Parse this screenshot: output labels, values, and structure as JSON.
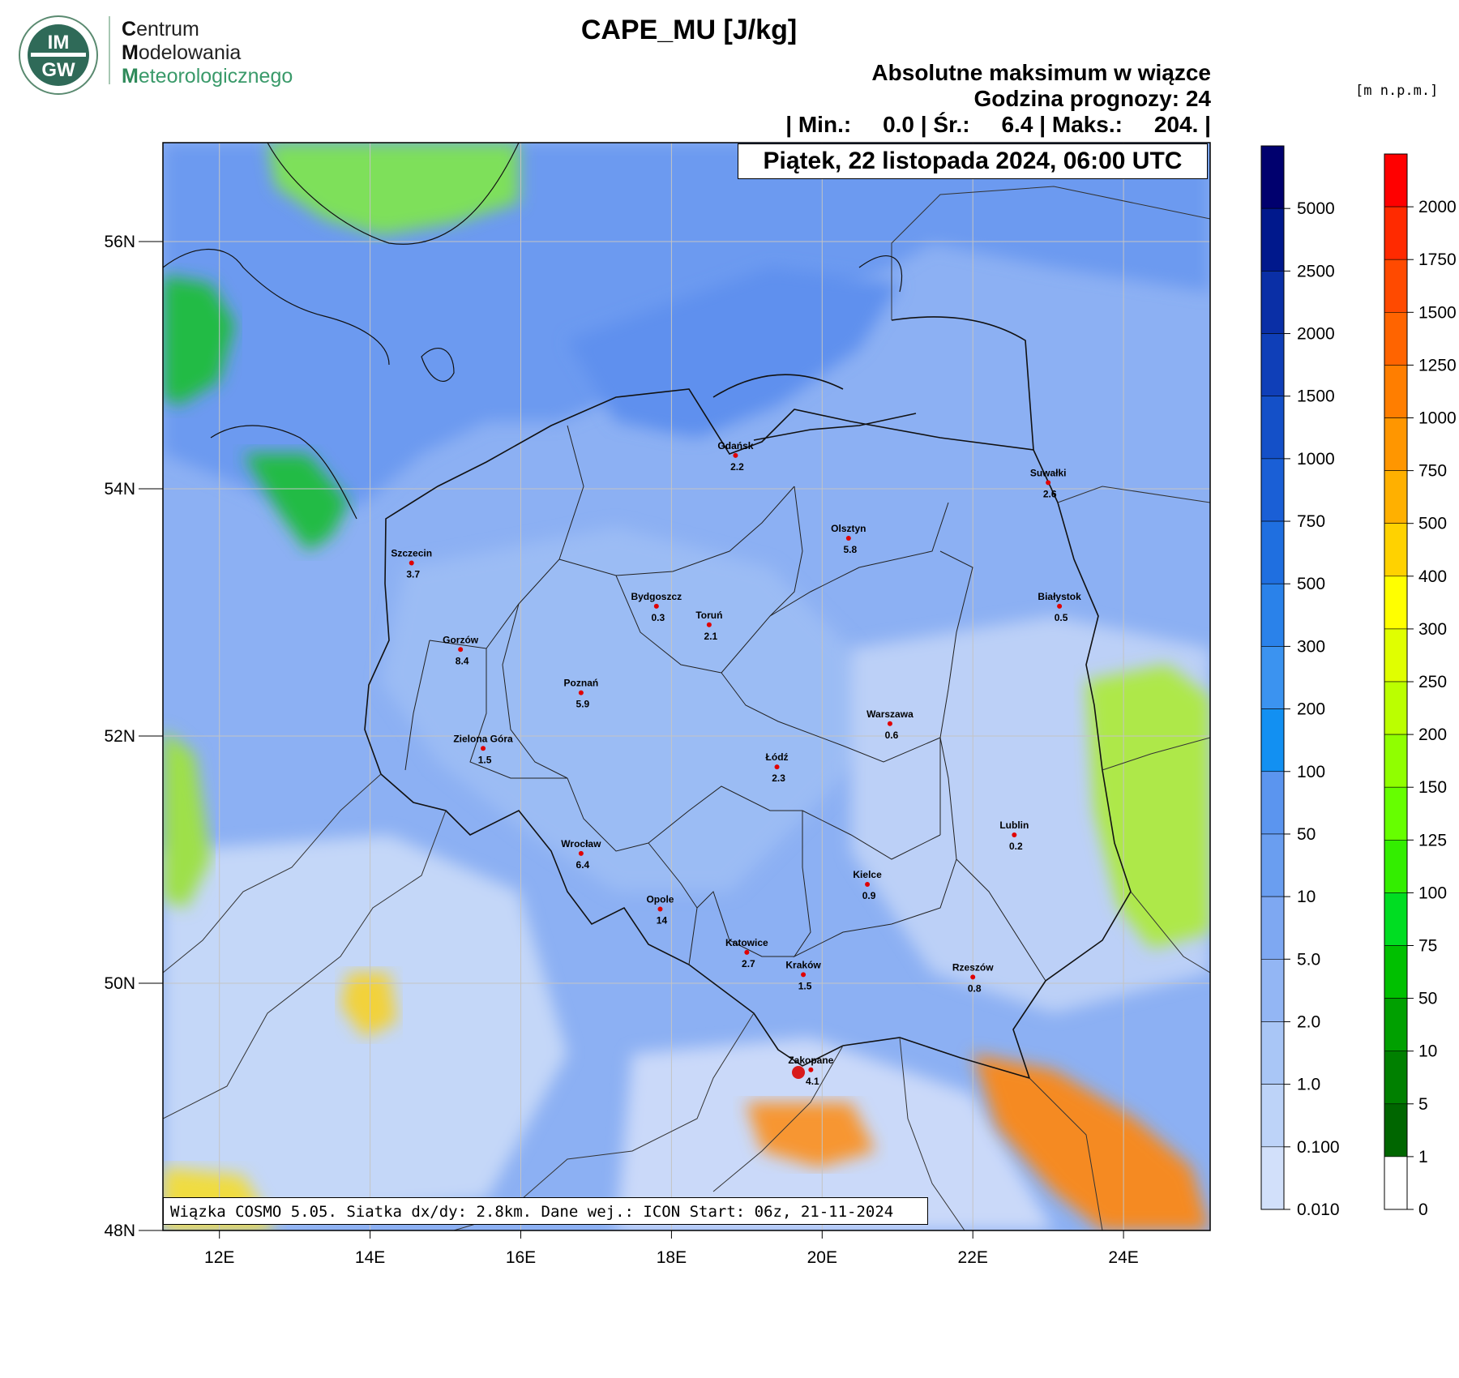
{
  "logo": {
    "badge_text_top": "IM",
    "badge_text_bottom": "GW",
    "line1_cap": "C",
    "line1_rest": "entrum",
    "line2_cap": "M",
    "line2_rest": "odelowania",
    "line3_cap": "M",
    "line3_rest": "eteorologicznego"
  },
  "title": "CAPE_MU [J/kg]",
  "subtitle": "Absolutne maksimum w wiązce",
  "forecast_hour": "Godzina prognozy: 24",
  "stats": {
    "sep": "|",
    "min_label": "Min.:",
    "min_value": "0.0",
    "avg_label": "Śr.:",
    "avg_value": "6.4",
    "max_label": "Maks.:",
    "max_value": "204."
  },
  "date_label": "Piątek, 22 listopada 2024, 06:00 UTC",
  "footer": "Wiązka COSMO 5.05. Siatka dx/dy: 2.8km. Dane wej.: ICON Start: 06z, 21-11-2024",
  "unit_label": "[m n.p.m.]",
  "axes": {
    "lon_ticks": [
      "12E",
      "14E",
      "16E",
      "18E",
      "20E",
      "22E",
      "24E"
    ],
    "lat_ticks": [
      "56N",
      "54N",
      "52N",
      "50N",
      "48N"
    ],
    "lon_range": [
      11.25,
      25.15
    ],
    "lat_range": [
      48.0,
      56.8
    ]
  },
  "cape_scale": {
    "labels": [
      "5000",
      "2500",
      "2000",
      "1500",
      "1000",
      "750",
      "500",
      "300",
      "200",
      "100",
      "50",
      "10",
      "5.0",
      "2.0",
      "1.0",
      "0.100",
      "0.010"
    ],
    "colors": [
      "#00006e",
      "#00188c",
      "#0a2fa6",
      "#0f3fb8",
      "#1450c8",
      "#1a5fd6",
      "#1f6fe0",
      "#2a82ea",
      "#3b93f0",
      "#1290f2",
      "#5b95ef",
      "#6a9ef0",
      "#7ea8f2",
      "#93b6f4",
      "#a9c6f6",
      "#bdd3f8",
      "#d2e0fa"
    ]
  },
  "terrain_scale": {
    "labels": [
      "2000",
      "1750",
      "1500",
      "1250",
      "1000",
      "750",
      "500",
      "400",
      "300",
      "250",
      "200",
      "150",
      "125",
      "100",
      "75",
      "50",
      "10",
      "5",
      "1",
      "0"
    ],
    "colors": [
      "#ff0000",
      "#ff2a00",
      "#ff4a00",
      "#ff6400",
      "#ff7e00",
      "#ff9600",
      "#ffb000",
      "#ffd200",
      "#ffff00",
      "#e0ff00",
      "#bbff00",
      "#90ff00",
      "#66ff00",
      "#33ee00",
      "#00dd22",
      "#00c000",
      "#00a000",
      "#008000",
      "#006600",
      "#ffffff"
    ]
  },
  "cities": [
    {
      "name": "Gdańsk",
      "value": "2.2",
      "lon": 18.85,
      "lat": 54.27
    },
    {
      "name": "Suwałki",
      "value": "2.6",
      "lon": 23.0,
      "lat": 54.05
    },
    {
      "name": "Olsztyn",
      "value": "5.8",
      "lon": 20.35,
      "lat": 53.6
    },
    {
      "name": "Szczecin",
      "value": "3.7",
      "lon": 14.55,
      "lat": 53.4
    },
    {
      "name": "Bydgoszcz",
      "value": "0.3",
      "lon": 17.8,
      "lat": 53.05
    },
    {
      "name": "Toruń",
      "value": "2.1",
      "lon": 18.5,
      "lat": 52.9
    },
    {
      "name": "Białystok",
      "value": "0.5",
      "lon": 23.15,
      "lat": 53.05
    },
    {
      "name": "Gorzów",
      "value": "8.4",
      "lon": 15.2,
      "lat": 52.7
    },
    {
      "name": "Poznań",
      "value": "5.9",
      "lon": 16.8,
      "lat": 52.35
    },
    {
      "name": "Warszawa",
      "value": "0.6",
      "lon": 20.9,
      "lat": 52.1
    },
    {
      "name": "Zielona Góra",
      "value": "1.5",
      "lon": 15.5,
      "lat": 51.9
    },
    {
      "name": "Łódź",
      "value": "2.3",
      "lon": 19.4,
      "lat": 51.75
    },
    {
      "name": "Lublin",
      "value": "0.2",
      "lon": 22.55,
      "lat": 51.2
    },
    {
      "name": "Wrocław",
      "value": "6.4",
      "lon": 16.8,
      "lat": 51.05
    },
    {
      "name": "Kielce",
      "value": "0.9",
      "lon": 20.6,
      "lat": 50.8
    },
    {
      "name": "Opole",
      "value": "14",
      "lon": 17.85,
      "lat": 50.6
    },
    {
      "name": "Katowice",
      "value": "2.7",
      "lon": 19.0,
      "lat": 50.25
    },
    {
      "name": "Kraków",
      "value": "1.5",
      "lon": 19.75,
      "lat": 50.07
    },
    {
      "name": "Rzeszów",
      "value": "0.8",
      "lon": 22.0,
      "lat": 50.05
    },
    {
      "name": "Zakopane",
      "value": "4.1",
      "lon": 19.85,
      "lat": 49.3
    }
  ]
}
